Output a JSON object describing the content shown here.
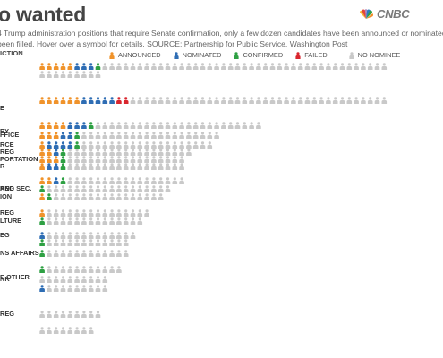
{
  "header": {
    "title": "o wanted",
    "logo_text": "CNBC",
    "description_lines": [
      "4 Trump administration positions that require Senate confirmation, only a few dozen candidates have been announced or nominated and",
      "been filled.  Hover over a symbol for details. SOURCE: Partnership for Public Service, Washington Post"
    ],
    "category_header": "ICTION"
  },
  "colors": {
    "announced": "#F0932B",
    "nominated": "#2E6DB4",
    "confirmed": "#2EA043",
    "failed": "#D9262E",
    "no_nominee": "#C9C9C9"
  },
  "legend": [
    {
      "key": "announced",
      "label": "ANNOUNCED"
    },
    {
      "key": "nominated",
      "label": "NOMINATED"
    },
    {
      "key": "confirmed",
      "label": "CONFIRMED"
    },
    {
      "key": "failed",
      "label": "FAILED"
    },
    {
      "key": "no_nominee",
      "label": "NO NOMINEE"
    }
  ],
  "chart_data": {
    "type": "table",
    "title": "o wanted",
    "statuses": [
      "ANNOUNCED",
      "NOMINATED",
      "CONFIRMED",
      "FAILED",
      "NO NOMINEE"
    ],
    "rows": [
      {
        "label": "",
        "counts": {
          "announced": 5,
          "nominated": 3,
          "confirmed": 1,
          "failed": 0,
          "no_nominee": 50
        }
      },
      {
        "label": "E",
        "counts": {
          "announced": 6,
          "nominated": 5,
          "confirmed": 0,
          "failed": 2,
          "no_nominee": 37
        }
      },
      {
        "label": "RY",
        "counts": {
          "announced": 4,
          "nominated": 3,
          "confirmed": 1,
          "failed": 0,
          "no_nominee": 24
        }
      },
      {
        "label": "FFICE",
        "counts": {
          "announced": 3,
          "nominated": 2,
          "confirmed": 1,
          "failed": 0,
          "no_nominee": 20
        }
      },
      {
        "label": "RCE",
        "counts": {
          "announced": 1,
          "nominated": 4,
          "confirmed": 1,
          "failed": 0,
          "no_nominee": 19
        }
      },
      {
        "label": "REG",
        "counts": {
          "announced": 2,
          "nominated": 1,
          "confirmed": 1,
          "failed": 0,
          "no_nominee": 18
        }
      },
      {
        "label": "PORTATION",
        "counts": {
          "announced": 3,
          "nominated": 0,
          "confirmed": 1,
          "failed": 0,
          "no_nominee": 17
        }
      },
      {
        "label": "R",
        "counts": {
          "announced": 1,
          "nominated": 2,
          "confirmed": 1,
          "failed": 0,
          "no_nominee": 17
        }
      },
      {
        "label": "AND SEC.",
        "counts": {
          "announced": 2,
          "nominated": 1,
          "confirmed": 1,
          "failed": 0,
          "no_nominee": 17
        }
      },
      {
        "label": "REG",
        "counts": {
          "announced": 0,
          "nominated": 0,
          "confirmed": 1,
          "failed": 0,
          "no_nominee": 18
        }
      },
      {
        "label": "ION",
        "counts": {
          "announced": 1,
          "nominated": 0,
          "confirmed": 1,
          "failed": 0,
          "no_nominee": 16
        }
      },
      {
        "label": "REG",
        "counts": {
          "announced": 1,
          "nominated": 0,
          "confirmed": 0,
          "failed": 0,
          "no_nominee": 15
        }
      },
      {
        "label": "LTURE",
        "counts": {
          "announced": 0,
          "nominated": 0,
          "confirmed": 1,
          "failed": 0,
          "no_nominee": 14
        }
      },
      {
        "label": "EG",
        "counts": {
          "announced": 0,
          "nominated": 1,
          "confirmed": 0,
          "failed": 0,
          "no_nominee": 13
        }
      },
      {
        "label": "",
        "counts": {
          "announced": 0,
          "nominated": 0,
          "confirmed": 1,
          "failed": 0,
          "no_nominee": 12
        }
      },
      {
        "label": "NS AFFAIRS",
        "counts": {
          "announced": 0,
          "nominated": 0,
          "confirmed": 1,
          "failed": 0,
          "no_nominee": 12
        }
      },
      {
        "label": "E OTHER",
        "counts": {
          "announced": 0,
          "nominated": 0,
          "confirmed": 1,
          "failed": 0,
          "no_nominee": 11
        }
      },
      {
        "label": "NK",
        "counts": {
          "announced": 0,
          "nominated": 0,
          "confirmed": 0,
          "failed": 0,
          "no_nominee": 10
        }
      },
      {
        "label": "",
        "counts": {
          "announced": 0,
          "nominated": 1,
          "confirmed": 0,
          "failed": 0,
          "no_nominee": 9
        }
      },
      {
        "label": "REG",
        "counts": {
          "announced": 0,
          "nominated": 0,
          "confirmed": 0,
          "failed": 0,
          "no_nominee": 9
        }
      },
      {
        "label": "",
        "counts": {
          "announced": 0,
          "nominated": 0,
          "confirmed": 0,
          "failed": 0,
          "no_nominee": 8
        }
      }
    ]
  }
}
